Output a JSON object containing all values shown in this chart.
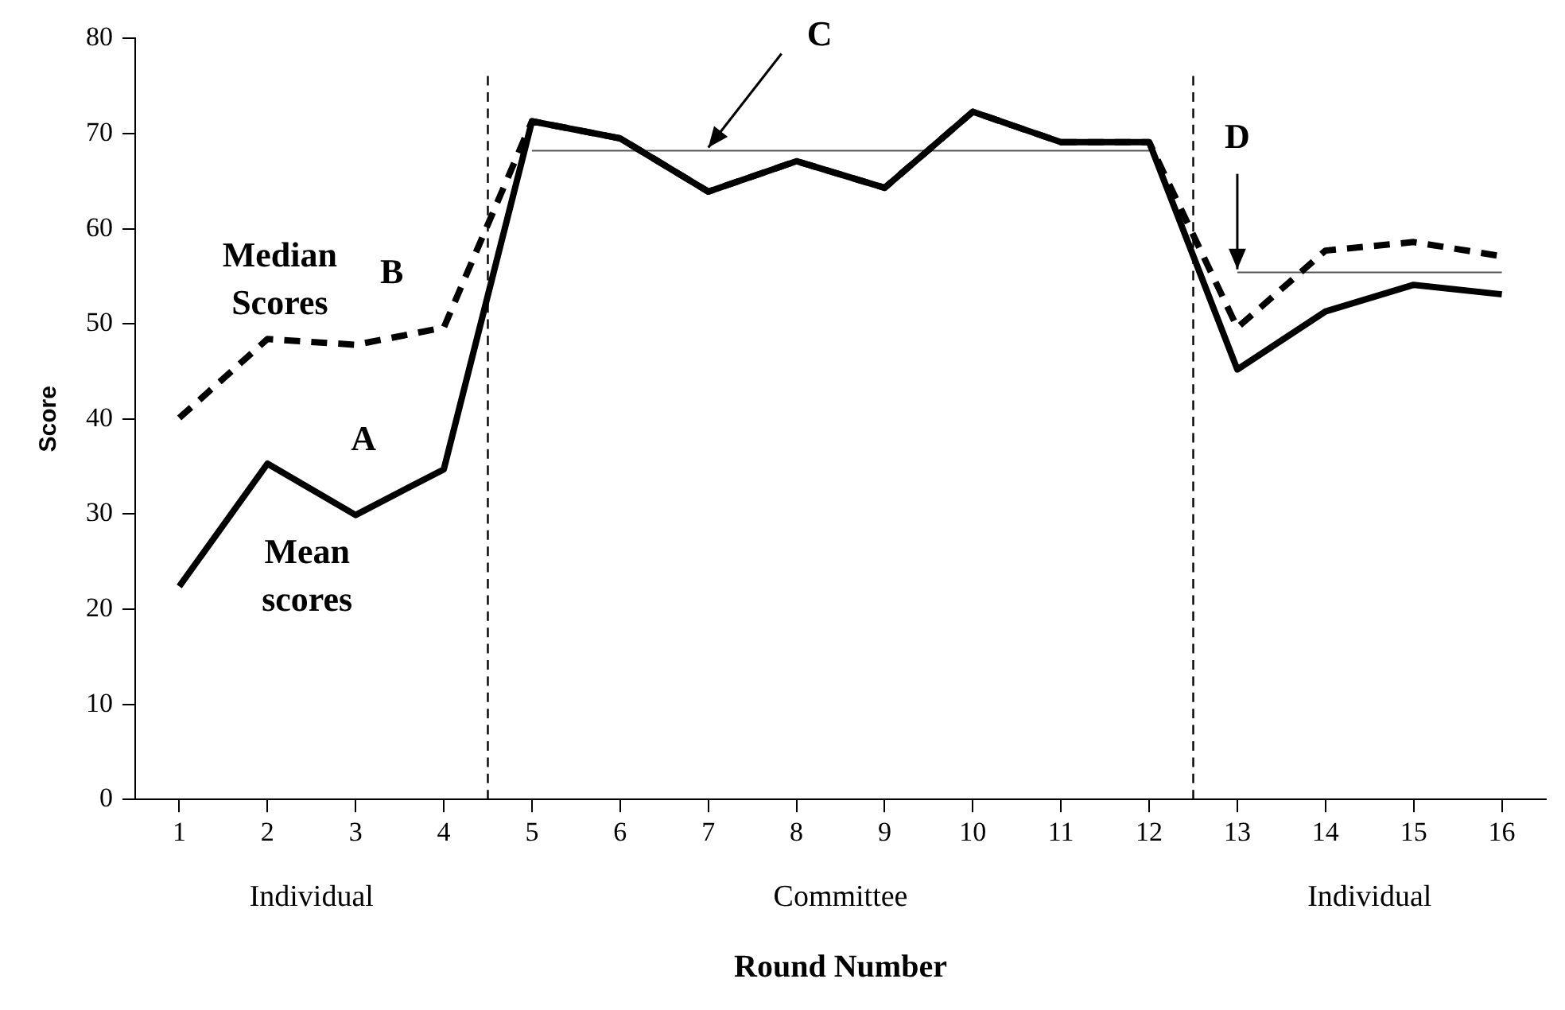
{
  "chart_data": {
    "type": "line",
    "xlabel": "Round Number",
    "ylabel": "Score",
    "x": [
      1,
      2,
      3,
      4,
      5,
      6,
      7,
      8,
      9,
      10,
      11,
      12,
      13,
      14,
      15,
      16
    ],
    "series": [
      {
        "color": "#000000",
        "line_style": "dashed",
        "values": [
          40.1,
          48.4,
          47.8,
          49.6,
          71.3,
          69.5,
          63.9,
          67.1,
          64.3,
          72.3,
          69.1,
          69.1,
          49.6,
          57.7,
          58.6,
          57.1
        ]
      },
      {
        "color": "#000000",
        "line_style": "solid",
        "values": [
          22.4,
          35.3,
          29.9,
          34.7,
          71.3,
          69.5,
          63.9,
          67.1,
          64.3,
          72.3,
          69.1,
          69.1,
          45.2,
          51.3,
          54.1,
          53.1
        ]
      },
      {
        "color": "#555555",
        "line_style": "solid",
        "x": [
          5,
          12
        ],
        "values": [
          68.2,
          68.2
        ]
      },
      {
        "color": "#555555",
        "line_style": "solid",
        "x": [
          13,
          16
        ],
        "values": [
          55.4,
          55.4
        ]
      }
    ],
    "xlim": [
      0.5,
      16.5
    ],
    "xticks": [
      1,
      2,
      3,
      4,
      5,
      6,
      7,
      8,
      9,
      10,
      11,
      12,
      13,
      14,
      15,
      16
    ],
    "ylim": [
      0,
      80
    ],
    "yticks": [
      0,
      10,
      20,
      30,
      40,
      50,
      60,
      70,
      80
    ],
    "grid": false,
    "legend": false,
    "marker": "none",
    "ref_lines": [
      {
        "axis": "x",
        "value": 4.5,
        "line_style": "dashed"
      },
      {
        "axis": "x",
        "value": 12.5,
        "line_style": "dashed"
      }
    ],
    "annotations": [
      "A",
      "B",
      "Median Scores",
      "Mean scores",
      {
        "text": "C",
        "x": 7,
        "y": 68.2
      },
      {
        "text": "D",
        "x": 13,
        "y": 55.4
      },
      "Individual",
      "Committee",
      "Individual"
    ]
  }
}
